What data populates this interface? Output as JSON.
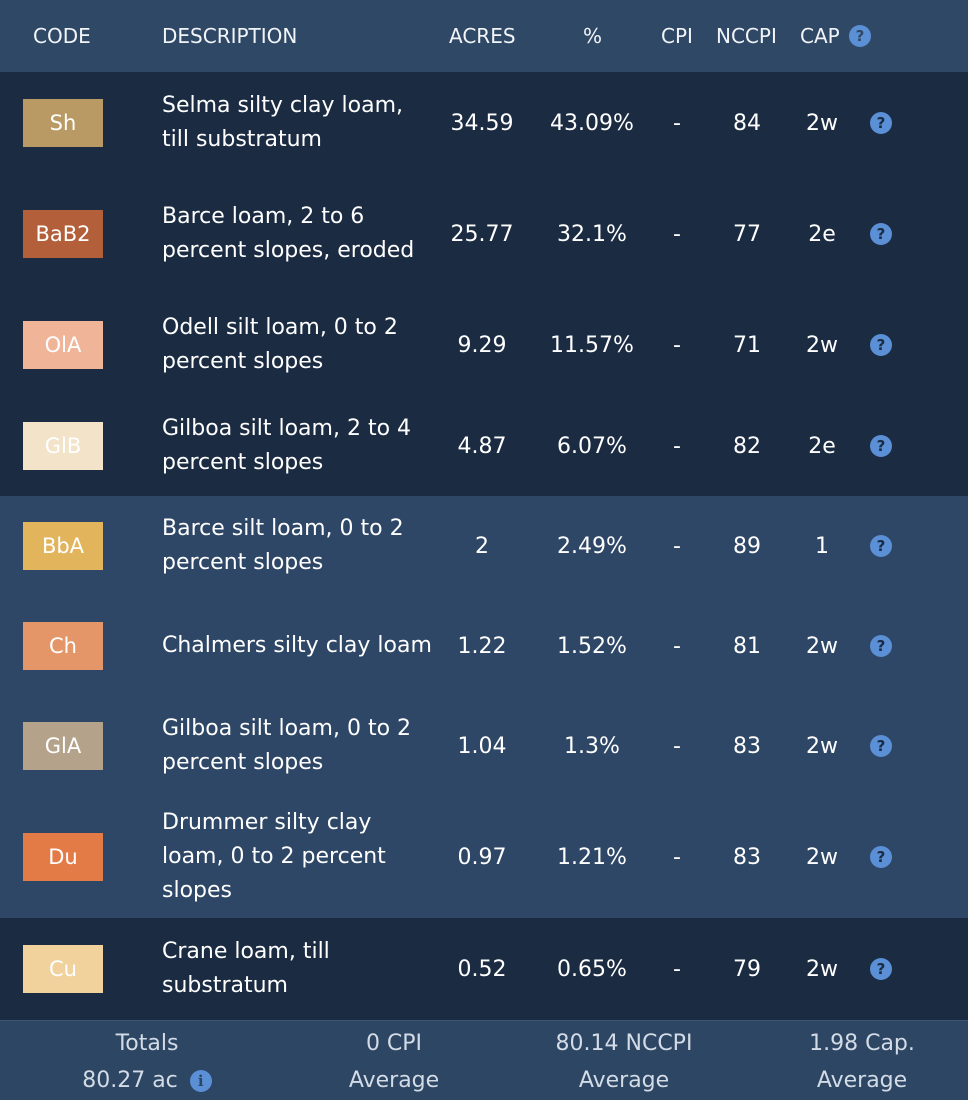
{
  "header": {
    "code": "CODE",
    "description": "DESCRIPTION",
    "acres": "ACRES",
    "pct": "%",
    "cpi": "CPI",
    "nccpi": "NCCPI",
    "cap": "CAP"
  },
  "help_icon_glyph": "?",
  "info_icon_glyph": "i",
  "rows": [
    {
      "code": "Sh",
      "color": "#b99a64",
      "text_color": "#ffffff",
      "description": "Selma silty clay loam, till substratum",
      "acres": "34.59",
      "pct": "43.09%",
      "cpi": "-",
      "nccpi": "84",
      "cap": "2w",
      "band": "dark",
      "height": 102
    },
    {
      "code": "BaB2",
      "color": "#b35f3a",
      "text_color": "#ffffff",
      "description": "Barce loam, 2 to 6 percent slopes, eroded",
      "acres": "25.77",
      "pct": "32.1%",
      "cpi": "-",
      "nccpi": "77",
      "cap": "2e",
      "band": "dark",
      "height": 120
    },
    {
      "code": "OlA",
      "color": "#f0b499",
      "text_color": "#ffffff",
      "description": "Odell silt loam, 0 to 2 percent slopes",
      "acres": "9.29",
      "pct": "11.57%",
      "cpi": "-",
      "nccpi": "71",
      "cap": "2w",
      "band": "dark",
      "height": 102
    },
    {
      "code": "GlB",
      "color": "#f2e3c9",
      "text_color": "#ffffff",
      "description": "Gilboa silt loam, 2 to 4 percent slopes",
      "acres": "4.87",
      "pct": "6.07%",
      "cpi": "-",
      "nccpi": "82",
      "cap": "2e",
      "band": "dark",
      "height": 100
    },
    {
      "code": "BbA",
      "color": "#e2b45c",
      "text_color": "#ffffff",
      "description": "Barce silt loam, 0 to 2 percent slopes",
      "acres": "2",
      "pct": "2.49%",
      "cpi": "-",
      "nccpi": "89",
      "cap": "1",
      "band": "light",
      "height": 100
    },
    {
      "code": "Ch",
      "color": "#e59668",
      "text_color": "#ffffff",
      "description": "Chalmers silty clay loam",
      "acres": "1.22",
      "pct": "1.52%",
      "cpi": "-",
      "nccpi": "81",
      "cap": "2w",
      "band": "light",
      "height": 100
    },
    {
      "code": "GlA",
      "color": "#b4a38a",
      "text_color": "#ffffff",
      "description": "Gilboa silt loam, 0 to 2 percent slopes",
      "acres": "1.04",
      "pct": "1.3%",
      "cpi": "-",
      "nccpi": "83",
      "cap": "2w",
      "band": "light",
      "height": 100
    },
    {
      "code": "Du",
      "color": "#e37b47",
      "text_color": "#ffffff",
      "description": "Drummer silty clay loam, 0 to 2 percent slopes",
      "acres": "0.97",
      "pct": "1.21%",
      "cpi": "-",
      "nccpi": "83",
      "cap": "2w",
      "band": "light",
      "height": 122
    },
    {
      "code": "Cu",
      "color": "#f1d29c",
      "text_color": "#ffffff",
      "description": "Crane loam, till substratum",
      "acres": "0.52",
      "pct": "0.65%",
      "cpi": "-",
      "nccpi": "79",
      "cap": "2w",
      "band": "dark",
      "height": 102
    }
  ],
  "footer": {
    "totals_label": "Totals",
    "totals_value": "80.27 ac",
    "cpi_value": "0 CPI",
    "cpi_label": "Average",
    "nccpi_value": "80.14 NCCPI",
    "nccpi_label": "Average",
    "cap_value": "1.98 Cap.",
    "cap_label": "Average"
  }
}
